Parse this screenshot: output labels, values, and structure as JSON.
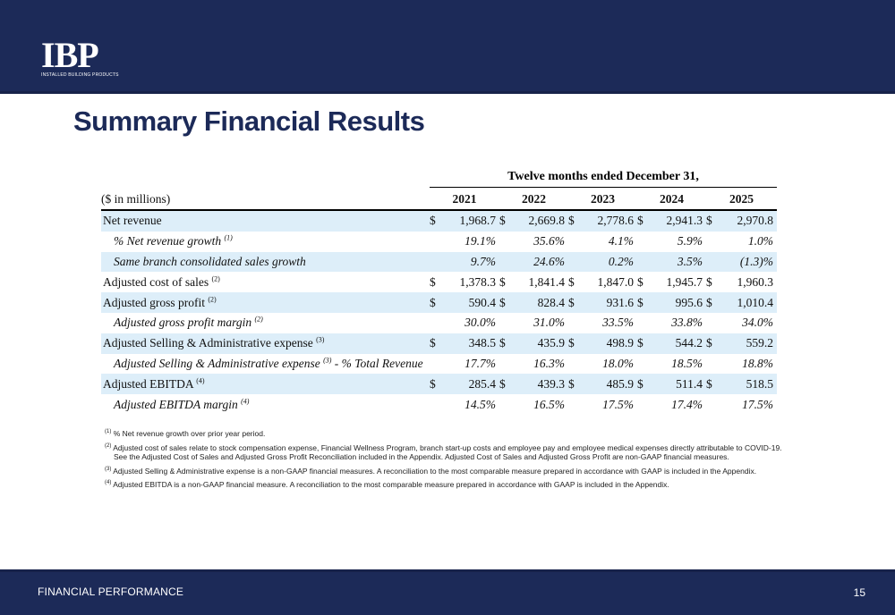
{
  "logo": {
    "main": "IBP",
    "sub": "INSTALLED BUILDING PRODUCTS"
  },
  "title": "Summary Financial Results",
  "table": {
    "period_header": "Twelve months ended December 31,",
    "unit_label": "($ in millions)",
    "years": [
      "2021",
      "2022",
      "2023",
      "2024",
      "2025"
    ],
    "rows": [
      {
        "label": "Net revenue",
        "sup": "",
        "suffix": "",
        "italic": false,
        "shade": true,
        "dollar": true,
        "values": [
          "1,968.7",
          "2,669.8",
          "2,778.6",
          "2,941.3",
          "2,970.8"
        ]
      },
      {
        "label": "% Net revenue growth",
        "sup": "(1)",
        "suffix": "",
        "italic": true,
        "shade": false,
        "dollar": false,
        "values": [
          "19.1%",
          "35.6%",
          "4.1%",
          "5.9%",
          "1.0%"
        ]
      },
      {
        "label": "Same branch consolidated sales growth",
        "sup": "",
        "suffix": "",
        "italic": true,
        "shade": true,
        "dollar": false,
        "values": [
          "9.7%",
          "24.6%",
          "0.2%",
          "3.5%",
          "(1.3)%"
        ]
      },
      {
        "label": "Adjusted cost of sales",
        "sup": "(2)",
        "suffix": "",
        "italic": false,
        "shade": false,
        "dollar": true,
        "values": [
          "1,378.3",
          "1,841.4",
          "1,847.0",
          "1,945.7",
          "1,960.3"
        ]
      },
      {
        "label": "Adjusted gross profit",
        "sup": "(2)",
        "suffix": "",
        "italic": false,
        "shade": true,
        "dollar": true,
        "values": [
          "590.4",
          "828.4",
          "931.6",
          "995.6",
          "1,010.4"
        ]
      },
      {
        "label": "Adjusted gross profit margin",
        "sup": "(2)",
        "suffix": "",
        "italic": true,
        "shade": false,
        "dollar": false,
        "values": [
          "30.0%",
          "31.0%",
          "33.5%",
          "33.8%",
          "34.0%"
        ]
      },
      {
        "label": "Adjusted Selling & Administrative expense",
        "sup": "(3)",
        "suffix": "",
        "italic": false,
        "shade": true,
        "dollar": true,
        "values": [
          "348.5",
          "435.9",
          "498.9",
          "544.2",
          "559.2"
        ]
      },
      {
        "label": "Adjusted Selling & Administrative expense",
        "sup": "(3)",
        "suffix": " - % Total Revenue",
        "italic": true,
        "shade": false,
        "dollar": false,
        "values": [
          "17.7%",
          "16.3%",
          "18.0%",
          "18.5%",
          "18.8%"
        ]
      },
      {
        "label": "Adjusted EBITDA",
        "sup": "(4)",
        "suffix": "",
        "italic": false,
        "shade": true,
        "dollar": true,
        "values": [
          "285.4",
          "439.3",
          "485.9",
          "511.4",
          "518.5"
        ]
      },
      {
        "label": "Adjusted EBITDA margin",
        "sup": "(4)",
        "suffix": "",
        "italic": true,
        "shade": false,
        "dollar": false,
        "values": [
          "14.5%",
          "16.5%",
          "17.5%",
          "17.4%",
          "17.5%"
        ]
      }
    ],
    "currency_symbol": "$"
  },
  "footnotes": [
    {
      "mark": "(1)",
      "text": "% Net revenue growth over prior year period."
    },
    {
      "mark": "(2)",
      "text": "Adjusted cost of sales relate to stock compensation expense, Financial Wellness Program, branch start-up costs and employee pay and employee medical expenses directly attributable to COVID-19.",
      "text2": "See the Adjusted Cost of Sales and Adjusted Gross Profit Reconciliation included in the Appendix.  Adjusted Cost of Sales and Adjusted Gross Profit are non-GAAP financial measures."
    },
    {
      "mark": "(3)",
      "text": "Adjusted Selling & Administrative expense is a non-GAAP financial measures.  A reconciliation to the most comparable measure prepared in accordance with GAAP is included in the Appendix."
    },
    {
      "mark": "(4)",
      "text": "Adjusted EBITDA is a non-GAAP financial measure.  A reconciliation to the most comparable measure prepared in accordance with GAAP is included in the Appendix."
    }
  ],
  "footer": {
    "section": "FINANCIAL PERFORMANCE",
    "page": "15"
  }
}
